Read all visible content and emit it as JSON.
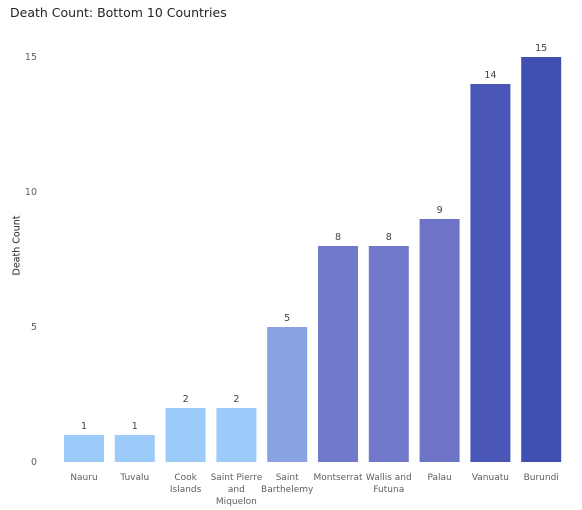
{
  "chart_data": {
    "type": "bar",
    "title": "Death Count: Bottom 10 Countries",
    "xlabel": "",
    "ylabel": "Death Count",
    "categories": [
      "Nauru",
      "Tuvalu",
      "Cook Islands",
      "Saint Pierre and Miquelon",
      "Saint Barthelemy",
      "Montserrat",
      "Wallis and Futuna",
      "Palau",
      "Vanuatu",
      "Burundi"
    ],
    "category_lines": [
      [
        "Nauru"
      ],
      [
        "Tuvalu"
      ],
      [
        "Cook",
        "Islands"
      ],
      [
        "Saint Pierre",
        "and",
        "Miquelon"
      ],
      [
        "Saint",
        "Barthelemy"
      ],
      [
        "Montserrat"
      ],
      [
        "Wallis and",
        "Futuna"
      ],
      [
        "Palau"
      ],
      [
        "Vanuatu"
      ],
      [
        "Burundi"
      ]
    ],
    "values": [
      1,
      1,
      2,
      2,
      5,
      8,
      8,
      9,
      14,
      15
    ],
    "ylim": [
      0,
      15
    ],
    "yticks": [
      0,
      5,
      10,
      15
    ],
    "grid": false,
    "legend": "none",
    "bar_colors": [
      "#9ccbf9",
      "#9ccbf9",
      "#9ccbf9",
      "#9ccbf9",
      "#87a3e1",
      "#7079c9",
      "#7079c9",
      "#6d73c7",
      "#4a57b7",
      "#414fb3"
    ]
  }
}
